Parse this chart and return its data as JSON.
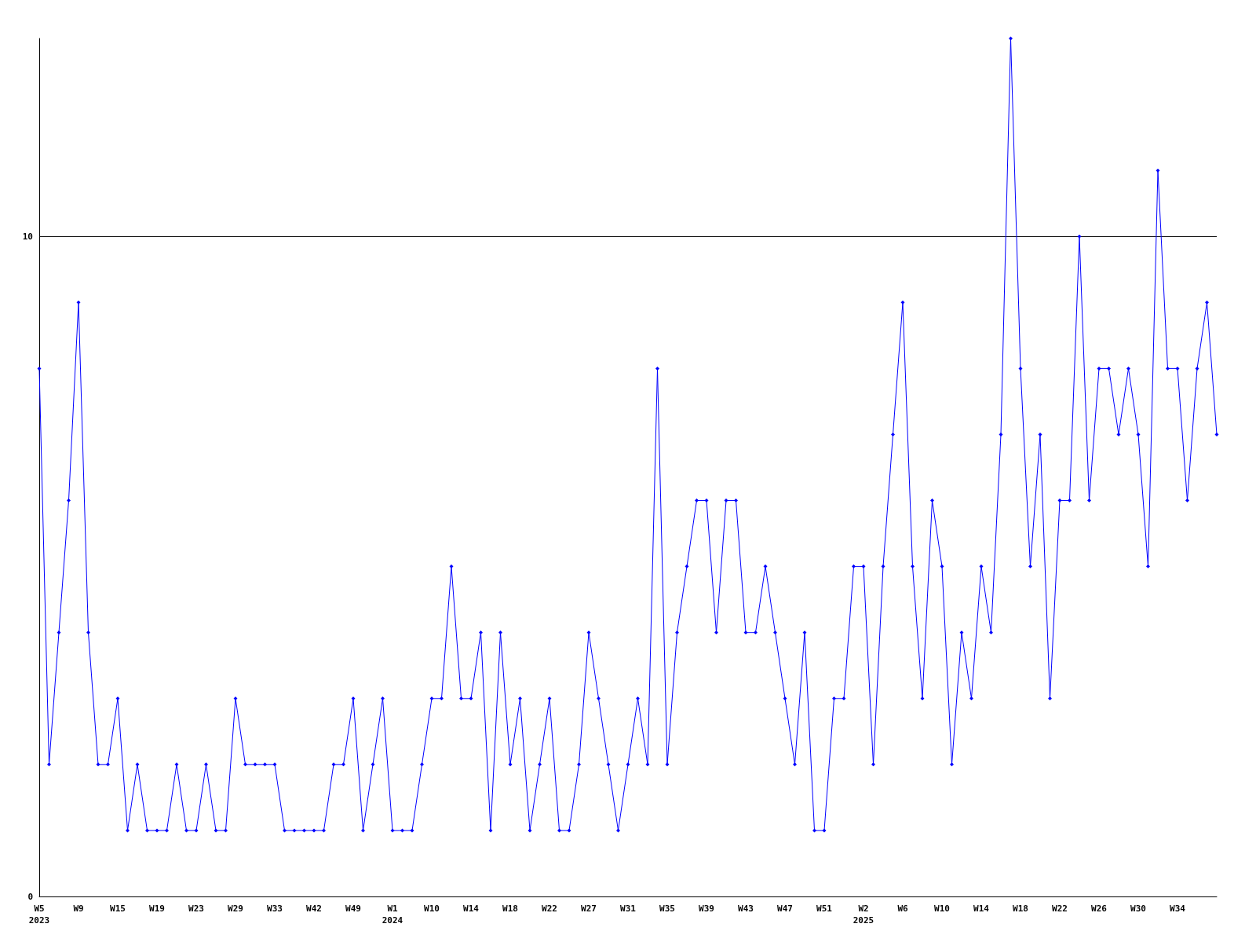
{
  "chart_data": {
    "type": "line",
    "categories": [
      "W5\n2023",
      null,
      null,
      null,
      "W9",
      null,
      null,
      null,
      "W15",
      null,
      null,
      null,
      "W19",
      null,
      null,
      null,
      "W23",
      null,
      null,
      null,
      "W29",
      null,
      null,
      null,
      "W33",
      null,
      null,
      null,
      "W42",
      null,
      null,
      null,
      "W49",
      null,
      null,
      null,
      "W1\n2024",
      null,
      null,
      null,
      "W10",
      null,
      null,
      null,
      "W14",
      null,
      null,
      null,
      "W18",
      null,
      null,
      null,
      "W22",
      null,
      null,
      null,
      "W27",
      null,
      null,
      null,
      "W31",
      null,
      null,
      null,
      "W35",
      null,
      null,
      null,
      "W39",
      null,
      null,
      null,
      "W43",
      null,
      null,
      null,
      "W47",
      null,
      null,
      null,
      "W51",
      null,
      null,
      null,
      "W2\n2025",
      null,
      null,
      null,
      "W6",
      null,
      null,
      null,
      "W10",
      null,
      null,
      null,
      "W14",
      null,
      null,
      null,
      "W18",
      null,
      null,
      null,
      "W22",
      null,
      null,
      null,
      "W26",
      null,
      null,
      null,
      "W30",
      null,
      null,
      null,
      "W34",
      null,
      null,
      null,
      null
    ],
    "series": [
      {
        "color": "#0000ff",
        "values": [
          8,
          2,
          4,
          6,
          9,
          4,
          2,
          2,
          3,
          1,
          2,
          1,
          1,
          1,
          2,
          1,
          1,
          2,
          1,
          1,
          3,
          2,
          2,
          2,
          2,
          1,
          1,
          1,
          1,
          1,
          2,
          2,
          3,
          1,
          2,
          3,
          1,
          1,
          1,
          2,
          3,
          3,
          5,
          3,
          3,
          4,
          1,
          4,
          2,
          3,
          1,
          2,
          3,
          1,
          1,
          2,
          4,
          3,
          2,
          1,
          2,
          3,
          2,
          8,
          2,
          4,
          5,
          6,
          6,
          4,
          6,
          6,
          4,
          4,
          5,
          4,
          3,
          2,
          4,
          1,
          1,
          3,
          3,
          5,
          5,
          2,
          5,
          7,
          9,
          5,
          3,
          6,
          5,
          2,
          4,
          3,
          5,
          4,
          7,
          13,
          8,
          5,
          7,
          3,
          6,
          6,
          10,
          6,
          8,
          8,
          7,
          8,
          7,
          5,
          11,
          8,
          8,
          6,
          8,
          9,
          7
        ]
      }
    ],
    "ylim": [
      0,
      13
    ],
    "yticks": [
      0,
      10
    ],
    "grid": "y",
    "marker": "diamond",
    "line_style": "solid"
  }
}
